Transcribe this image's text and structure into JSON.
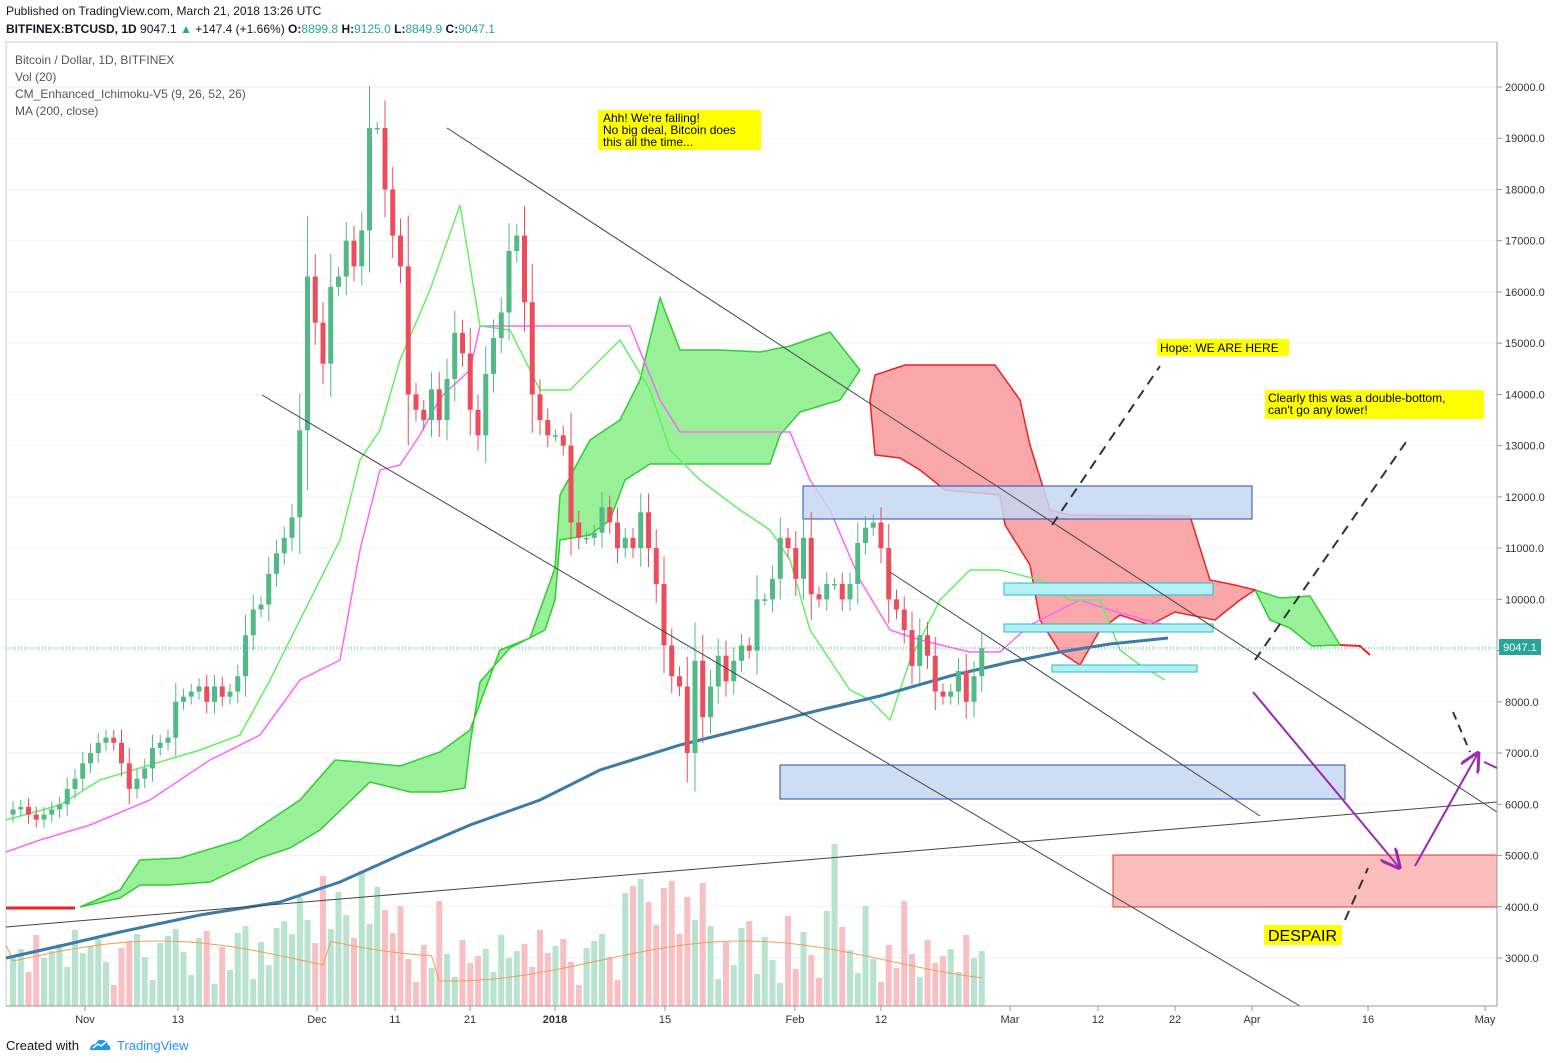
{
  "header": {
    "published": "Published on TradingView.com, March 21, 2018 13:26 UTC",
    "symbol": "BITFINEX:BTCUSD, 1D",
    "last": "9047.1",
    "change_arrow": "▲",
    "change": "+147.4 (+1.66%)",
    "o_label": "O:",
    "o_value": "8899.8",
    "h_label": "H:",
    "h_value": "9125.0",
    "l_label": "L:",
    "l_value": "8849.9",
    "c_label": "C:",
    "c_value": "9047.1"
  },
  "legend": {
    "title": "Bitcoin / Dollar, 1D, BITFINEX",
    "vol": "Vol (20)",
    "ichimoku": "CM_Enhanced_Ichimoku-V5 (9, 26, 52, 26)",
    "ma": "MA (200, close)"
  },
  "annotations": {
    "falling": [
      "Ahh! We're falling!",
      "No big deal, Bitcoin does",
      "this all the time..."
    ],
    "hope": "Hope: WE ARE HERE",
    "double_bottom": [
      "Clearly this was a double-bottom,",
      "can't go any lower!"
    ],
    "despair": "DESPAIR"
  },
  "price_label": "9047.1",
  "footer": {
    "created": "Created with",
    "brand": "TradingView"
  },
  "colors": {
    "up": "#26a69a",
    "candle_up": "#53b987",
    "candle_down": "#eb4d5c",
    "cloud_bull": "#7ee07e",
    "cloud_bear": "#f77c80",
    "ma": "#3a7ba8",
    "kijun": "#ff66ff",
    "tenkan": "#66ee66",
    "annotation_bg": "#ffff00",
    "arrow": "#9c27b0",
    "zone_blue": "#c5d6f2",
    "zone_cyan": "#b2f0f4",
    "zone_red": "#fbbcbc"
  },
  "chart_data": {
    "type": "candlestick",
    "symbol": "BITFINEX:BTCUSD",
    "interval": "1D",
    "x_ticks": [
      "Nov",
      "13",
      "Dec",
      "11",
      "21",
      "2018",
      "15",
      "Feb",
      "12",
      "Mar",
      "12",
      "22",
      "Apr",
      "16",
      "May"
    ],
    "y_ticks": [
      3000,
      4000,
      5000,
      6000,
      7000,
      8000,
      9000,
      10000,
      11000,
      12000,
      13000,
      14000,
      15000,
      16000,
      17000,
      18000,
      19000,
      20000
    ],
    "y_tick_labels": [
      "3000.0",
      "4000.0",
      "5000.0",
      "6000.0",
      "7000.0",
      "8000.0",
      "9000.0",
      "10000.0",
      "11000.0",
      "12000.0",
      "13000.0",
      "14000.0",
      "15000.0",
      "16000.0",
      "17000.0",
      "18000.0",
      "19000.0",
      "20000.0"
    ],
    "ylim": [
      2000,
      20700
    ],
    "last_price": 9047.1,
    "overlays": [
      "Vol (20)",
      "CM_Enhanced_Ichimoku-V5 (9, 26, 52, 26)",
      "MA (200, close)"
    ],
    "candles_close": [
      5900,
      5950,
      5800,
      5700,
      5800,
      5900,
      6000,
      6300,
      6500,
      6800,
      7000,
      7200,
      7300,
      7200,
      6800,
      6300,
      6500,
      6700,
      7100,
      7200,
      7300,
      8000,
      8100,
      8200,
      8300,
      8000,
      8300,
      8100,
      8200,
      8500,
      9300,
      9800,
      9900,
      10500,
      10900,
      11200,
      11600,
      13300,
      16300,
      15400,
      14600,
      16100,
      16300,
      17000,
      16500,
      17200,
      19200,
      19200,
      18000,
      17100,
      16500,
      14000,
      13700,
      13500,
      14100,
      13500,
      14300,
      15200,
      14800,
      13700,
      13200,
      14400,
      15100,
      15600,
      16800,
      17100,
      15800,
      14000,
      13500,
      13200,
      13200,
      13000,
      11500,
      11200,
      11200,
      11300,
      11800,
      11500,
      11000,
      11200,
      11000,
      11700,
      11000,
      10300,
      9100,
      8500,
      8300,
      7000,
      8800,
      7700,
      8300,
      8900,
      8400,
      8800,
      9100,
      9000,
      10000,
      10000,
      10400,
      11200,
      11000,
      10400,
      11200,
      10100,
      10000,
      10300,
      10300,
      10000,
      10300,
      11100,
      11400,
      11500,
      11000,
      10000,
      9800,
      9400,
      8700,
      9300,
      8900,
      8200,
      8100,
      8200,
      8600,
      8000,
      8500,
      9047
    ]
  }
}
